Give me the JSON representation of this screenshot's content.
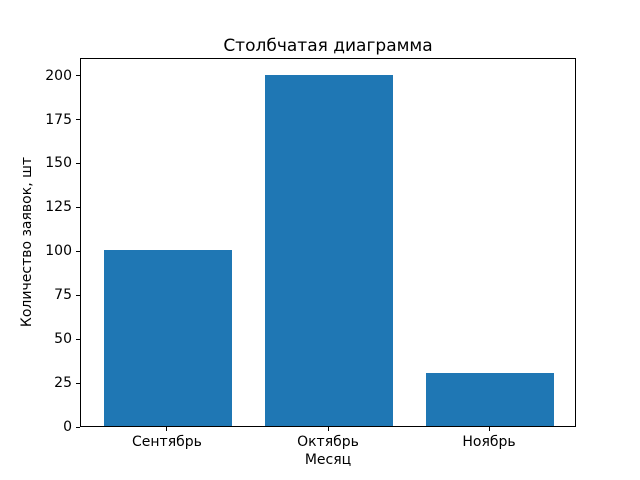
{
  "chart_data": {
    "type": "bar",
    "title": "Столбчатая диаграмма",
    "xlabel": "Месяц",
    "ylabel": "Количество заявок, шт",
    "categories": [
      "Сентябрь",
      "Октябрь",
      "Ноябрь"
    ],
    "values": [
      100,
      200,
      30
    ],
    "y_ticks": [
      0,
      25,
      50,
      75,
      100,
      125,
      150,
      175,
      200
    ],
    "ylim": [
      0,
      210
    ],
    "bar_color": "#1f77b4",
    "background_color": "#ffffff",
    "spine_color": "#000000",
    "grid": false,
    "legend_position": "none"
  }
}
